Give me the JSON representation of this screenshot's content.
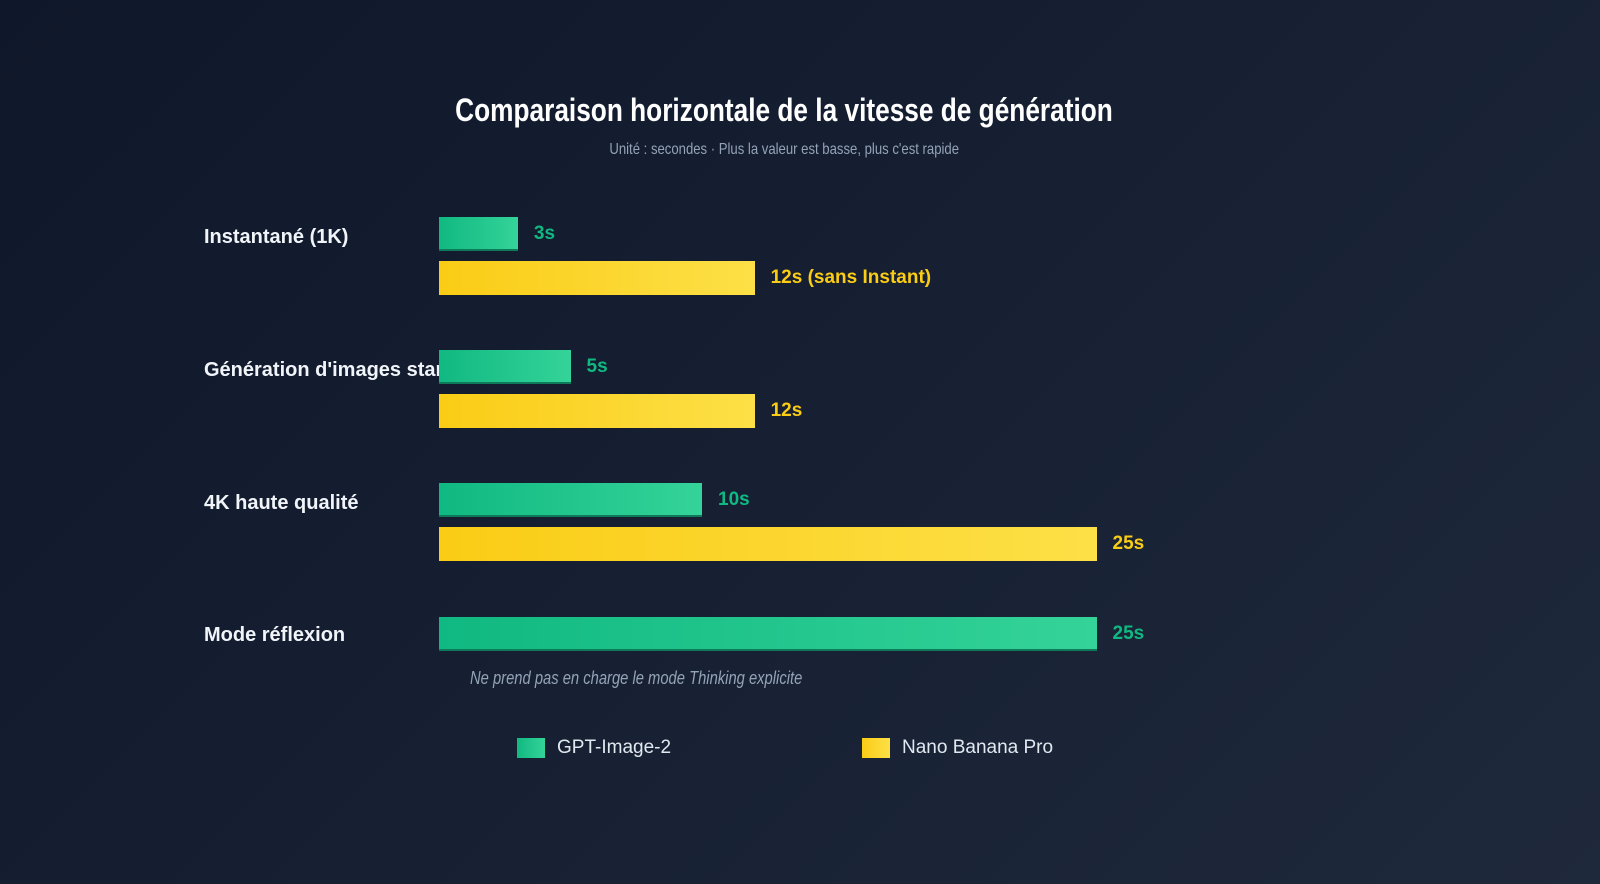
{
  "chart_data": {
    "type": "bar",
    "orientation": "horizontal",
    "title": "Comparaison horizontale de la vitesse de génération",
    "subtitle": "Unité : secondes · Plus la valeur est basse, plus c'est rapide",
    "categories": [
      "Instantané (1K)",
      "Génération d'images standard",
      "4K haute qualité",
      "Mode réflexion"
    ],
    "series": [
      {
        "name": "GPT-Image-2",
        "color": "#10b981",
        "values": [
          3,
          5,
          10,
          25
        ],
        "labels": [
          "3s",
          "5s",
          "10s",
          "25s"
        ]
      },
      {
        "name": "Nano Banana Pro",
        "color": "#facc15",
        "values": [
          12,
          12,
          25,
          null
        ],
        "labels": [
          "12s (sans Instant)",
          "12s",
          "25s",
          null
        ]
      }
    ],
    "annotations": [
      "Ne prend pas en charge le mode Thinking explicite"
    ],
    "legend": "bottom",
    "grid": false
  }
}
